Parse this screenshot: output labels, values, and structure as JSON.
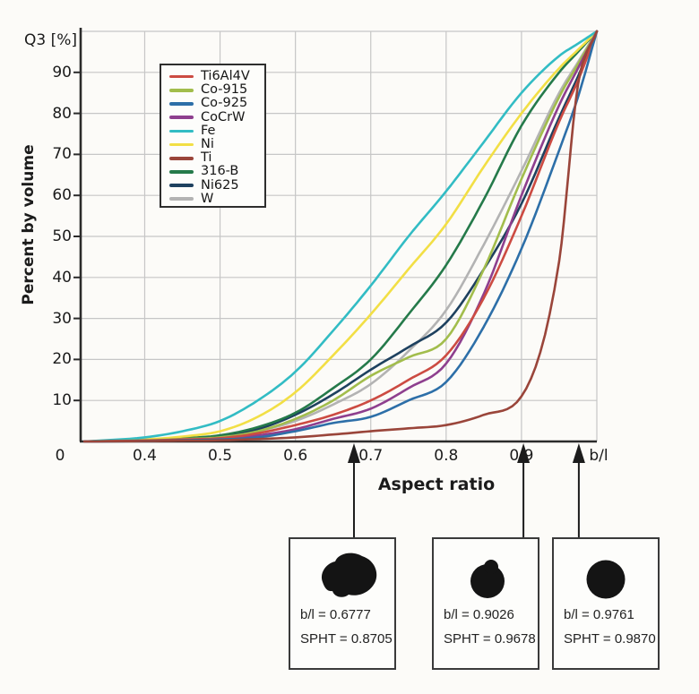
{
  "figure": {
    "q3_label": "Q3 [%]",
    "ylabel": "Percent by volume",
    "xlabel": "Aspect ratio",
    "x_unit_label": "b/l",
    "origin_label": "0"
  },
  "chart_data": {
    "type": "line",
    "title": "",
    "xlabel": "Aspect ratio",
    "ylabel": "Percent by volume",
    "y_axis_tag": "Q3 [%]",
    "x_axis_tag": "b/l",
    "xlim": [
      0.315,
      1.0
    ],
    "ylim": [
      0,
      100
    ],
    "grid": true,
    "legend_position": "upper-left-inside",
    "xticks": [
      "0",
      "0.4",
      "0.5",
      "0.6",
      "0.7",
      "0.8",
      "0.9"
    ],
    "yticks": [
      "90",
      "80",
      "70",
      "60",
      "50",
      "40",
      "30",
      "20",
      "10"
    ],
    "x": [
      0.32,
      0.4,
      0.45,
      0.5,
      0.55,
      0.6,
      0.65,
      0.7,
      0.75,
      0.8,
      0.85,
      0.9,
      0.95,
      0.975,
      1.0
    ],
    "series": [
      {
        "name": "Ti6Al4V",
        "color": "#cc4b42",
        "values": [
          0,
          0.2,
          0.5,
          0.8,
          2,
          4,
          6.5,
          10,
          15,
          21,
          35,
          55,
          78,
          88,
          100
        ]
      },
      {
        "name": "Co-915",
        "color": "#a2bd4c",
        "values": [
          0,
          0.3,
          0.6,
          1.0,
          2.5,
          5.5,
          10,
          16,
          20.5,
          25,
          42,
          64,
          84,
          92,
          100
        ]
      },
      {
        "name": "Co-925",
        "color": "#2d6fa8",
        "values": [
          0,
          0.1,
          0.3,
          0.5,
          1,
          2.5,
          4.5,
          6,
          10,
          14.5,
          28,
          47,
          71,
          84,
          100
        ]
      },
      {
        "name": "CoCrW",
        "color": "#8e3f8e",
        "values": [
          0,
          0.2,
          0.4,
          0.7,
          1.5,
          3,
          5.5,
          8,
          13,
          19,
          36,
          60,
          82,
          91,
          100
        ]
      },
      {
        "name": "Fe",
        "color": "#32bcc4",
        "values": [
          0,
          1.0,
          2.5,
          5,
          10,
          17,
          27,
          38,
          50,
          61,
          73,
          85,
          94,
          97,
          100
        ]
      },
      {
        "name": "Ni",
        "color": "#f2df45",
        "values": [
          0,
          0.5,
          1.2,
          2.5,
          6,
          12,
          21,
          31,
          42,
          53,
          67,
          80,
          91,
          95.5,
          100
        ]
      },
      {
        "name": "Ti",
        "color": "#9a453a",
        "values": [
          0,
          0.1,
          0.2,
          0.3,
          0.6,
          1,
          1.7,
          2.5,
          3.2,
          4,
          6.5,
          11,
          44,
          87,
          100
        ]
      },
      {
        "name": "316-B",
        "color": "#257a4a",
        "values": [
          0,
          0.3,
          0.8,
          1.5,
          3.5,
          7,
          13,
          20,
          31,
          43,
          59,
          77,
          90,
          95,
          100
        ]
      },
      {
        "name": "Ni625",
        "color": "#1e415f",
        "values": [
          0,
          0.3,
          0.7,
          1.2,
          3,
          6.5,
          11.5,
          17.5,
          23,
          29,
          42,
          58,
          79,
          89,
          100
        ]
      },
      {
        "name": "W",
        "color": "#b3b3b3",
        "values": [
          0,
          0.2,
          0.5,
          1.0,
          2.5,
          5,
          9,
          14,
          22,
          32,
          48,
          66,
          85,
          92.5,
          100
        ]
      }
    ]
  },
  "annotations": {
    "arrow_values_bl": [
      0.6777,
      0.9026,
      0.9761
    ]
  },
  "insets": [
    {
      "line1": "b/l = 0.6777",
      "line2": "SPHT = 0.8705",
      "particle": "irregular elongated particle"
    },
    {
      "line1": "b/l = 0.9026",
      "line2": "SPHT = 0.9678",
      "particle": "rounded particle with bump"
    },
    {
      "line1": "b/l = 0.9761",
      "line2": "SPHT = 0.9870",
      "particle": "spherical particle"
    }
  ],
  "style": {
    "grid_color": "#c6c6c6",
    "axis_color": "#2b2b2b",
    "background": "#fcfbf8"
  }
}
